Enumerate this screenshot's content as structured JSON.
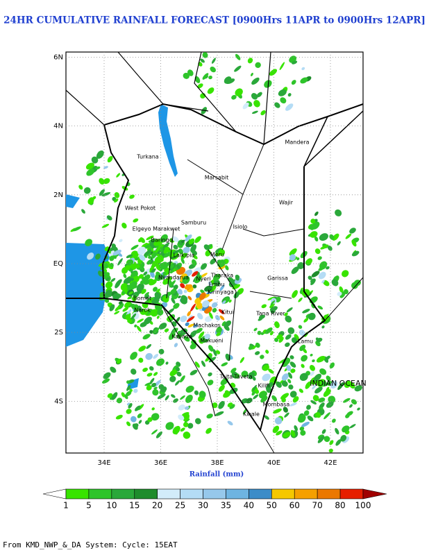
{
  "title": "24HR CUMULATIVE RAINFALL FORECAST [0900Hrs 11APR to 0900Hrs 12APR]",
  "map": {
    "lon_ticks": [
      {
        "value": 34,
        "label": "34E"
      },
      {
        "value": 36,
        "label": "36E"
      },
      {
        "value": 38,
        "label": "38E"
      },
      {
        "value": 40,
        "label": "40E"
      },
      {
        "value": 42,
        "label": "42E"
      }
    ],
    "lat_ticks": [
      {
        "value": 6,
        "label": "6N"
      },
      {
        "value": 4,
        "label": "4N"
      },
      {
        "value": 2,
        "label": "2N"
      },
      {
        "value": 0,
        "label": "EQ"
      },
      {
        "value": -2,
        "label": "2S"
      },
      {
        "value": -4,
        "label": "4S"
      }
    ],
    "places": [
      "Turkana",
      "Marsabit",
      "Mandera",
      "Wajir",
      "West Pokot",
      "Samburu",
      "Isiolo",
      "Elgeyo Marakwet",
      "Baringo",
      "Laikipia",
      "Meru",
      "Garissa",
      "Nyandarua",
      "Nyeri",
      "Tharaka",
      "Embu",
      "Kirinyaga",
      "Bomet",
      "Narok",
      "Kitui",
      "Tana River",
      "Machakos",
      "Kajiado",
      "Makueni",
      "Lamu",
      "Taita-Taveta",
      "Kilifi",
      "Mombasa",
      "Kwale",
      "INDIAN OCEAN"
    ]
  },
  "x_label": "Rainfall (mm)",
  "colorbar": {
    "levels": [
      1,
      5,
      10,
      15,
      20,
      25,
      30,
      35,
      40,
      50,
      60,
      70,
      80,
      100
    ],
    "colors": [
      "#ffffff",
      "#38e400",
      "#2ec42a",
      "#2aa83a",
      "#1e8c2c",
      "#d2ecfa",
      "#b4dcf5",
      "#96c8eb",
      "#6eb4e1",
      "#3c8cc8",
      "#f5c800",
      "#f5a000",
      "#eb7800",
      "#e61e00",
      "#a00000"
    ]
  },
  "footer": "From KMD_NWP_&_DA System: Cycle: 15EAT"
}
